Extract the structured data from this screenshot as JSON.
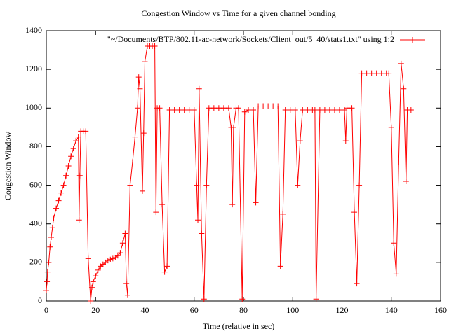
{
  "chart_data": {
    "type": "line",
    "title": "Congestion Window vs Time for a given channel bonding",
    "x_label": "Time (relative in sec)",
    "y_label": "Congestion Window",
    "x": [
      0,
      0.3,
      0.5,
      1,
      1.5,
      2,
      2.5,
      3,
      4,
      5,
      6,
      7,
      8,
      9,
      10,
      11,
      12,
      13,
      13.3,
      13.6,
      14,
      15,
      16,
      17,
      18,
      18.5,
      19,
      20,
      21,
      22,
      23,
      24,
      25,
      26,
      27,
      28,
      29,
      30,
      31,
      32,
      32.5,
      33,
      34,
      35,
      36,
      37,
      37.5,
      38,
      39,
      39.5,
      40,
      41,
      42,
      43,
      44,
      44.5,
      45,
      46,
      47,
      48,
      49,
      50,
      52,
      54,
      56,
      58,
      60,
      61,
      61.5,
      62,
      63,
      64,
      65,
      66,
      68,
      70,
      72,
      74,
      75,
      75.5,
      76,
      77,
      78,
      79.5,
      80.5,
      82,
      84,
      85,
      86,
      88,
      90,
      92,
      94,
      95,
      96,
      97,
      99,
      101,
      102,
      103,
      104,
      106,
      108,
      109,
      109.5,
      111,
      113,
      115,
      117,
      119,
      121,
      121.5,
      122,
      124,
      125,
      126,
      127,
      128,
      130,
      132,
      134,
      136,
      138,
      139,
      140,
      141,
      142,
      143,
      144,
      145,
      146,
      146.5,
      148
    ],
    "series": [
      {
        "name": "\"~/Documents/BTP/802.11-ac-network/Sockets/Client_out/5_40/stats1.txt\" using 1:2",
        "color": "#ff0000",
        "values": [
          55,
          100,
          150,
          200,
          280,
          330,
          380,
          430,
          480,
          520,
          560,
          600,
          650,
          700,
          750,
          790,
          830,
          850,
          420,
          650,
          880,
          880,
          880,
          220,
          0,
          70,
          100,
          130,
          160,
          180,
          190,
          200,
          210,
          215,
          220,
          225,
          235,
          250,
          300,
          350,
          90,
          30,
          600,
          720,
          850,
          1000,
          1160,
          1100,
          570,
          870,
          1240,
          1320,
          1320,
          1320,
          1320,
          460,
          1000,
          1000,
          500,
          150,
          180,
          990,
          990,
          990,
          990,
          990,
          990,
          600,
          420,
          1100,
          350,
          10,
          600,
          1000,
          1000,
          1000,
          1000,
          1000,
          900,
          500,
          900,
          1000,
          1000,
          10,
          980,
          990,
          990,
          510,
          1010,
          1010,
          1010,
          1010,
          1010,
          180,
          450,
          990,
          990,
          990,
          600,
          830,
          990,
          990,
          990,
          990,
          10,
          990,
          990,
          990,
          990,
          990,
          990,
          830,
          1000,
          1000,
          460,
          90,
          600,
          1180,
          1180,
          1180,
          1180,
          1180,
          1180,
          1180,
          900,
          300,
          140,
          720,
          1230,
          1100,
          620,
          990,
          990
        ]
      }
    ],
    "xlim": [
      0,
      160
    ],
    "xticks": [
      0,
      20,
      40,
      60,
      80,
      100,
      120,
      140,
      160
    ],
    "ylim": [
      0,
      1400
    ],
    "yticks": [
      0,
      200,
      400,
      600,
      800,
      1000,
      1200,
      1400
    ],
    "grid": false,
    "legend_position": "top-right"
  }
}
